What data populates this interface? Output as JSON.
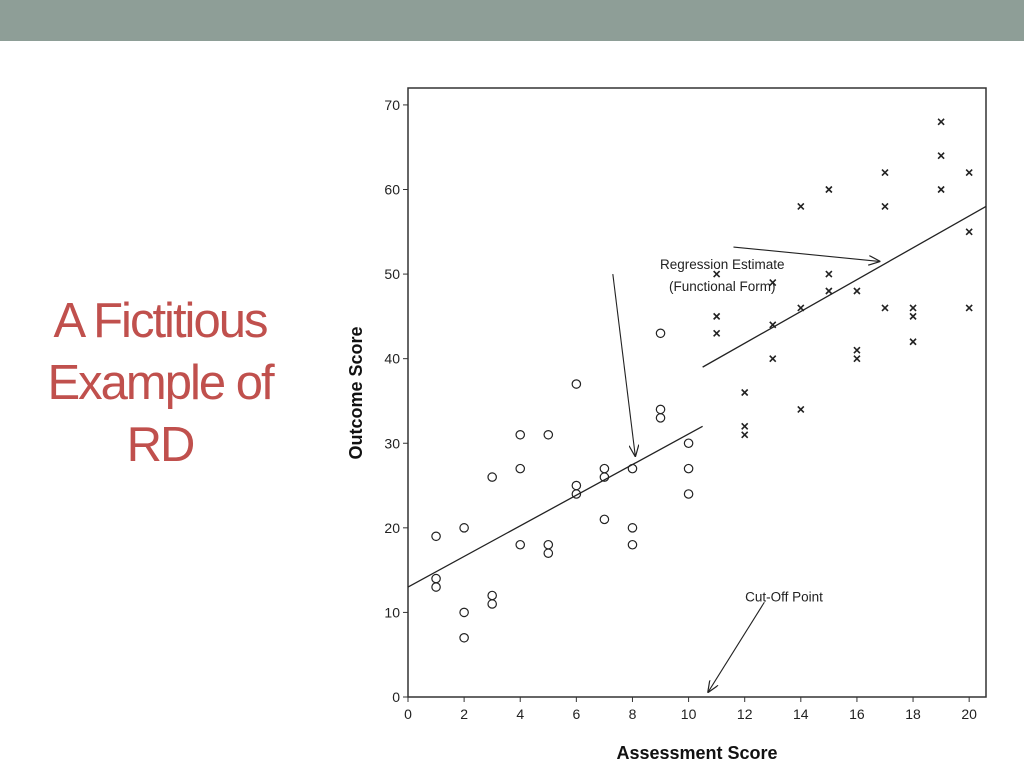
{
  "slide": {
    "title_lines": [
      "A Fictitious",
      "Example of",
      "RD"
    ],
    "title_color": "#c0504d",
    "header_bar_color": "#8e9e97"
  },
  "chart_data": {
    "type": "scatter",
    "xlabel": "Assessment Score",
    "ylabel": "Outcome Score",
    "xlim": [
      0,
      20.6
    ],
    "ylim": [
      0,
      72
    ],
    "xticks": [
      0,
      2,
      4,
      6,
      8,
      10,
      12,
      14,
      16,
      18,
      20
    ],
    "yticks": [
      0,
      10,
      20,
      30,
      40,
      50,
      60,
      70
    ],
    "grid": false,
    "cutoff": 10.5,
    "series": [
      {
        "marker": "circle",
        "points": [
          [
            1,
            19
          ],
          [
            1,
            14
          ],
          [
            1,
            13
          ],
          [
            2,
            20
          ],
          [
            2,
            10
          ],
          [
            2,
            7
          ],
          [
            3,
            26
          ],
          [
            3,
            12
          ],
          [
            3,
            11
          ],
          [
            4,
            31
          ],
          [
            4,
            27
          ],
          [
            4,
            18
          ],
          [
            5,
            31
          ],
          [
            5,
            18
          ],
          [
            5,
            17
          ],
          [
            6,
            37
          ],
          [
            6,
            25
          ],
          [
            6,
            24
          ],
          [
            7,
            27
          ],
          [
            7,
            26
          ],
          [
            7,
            21
          ],
          [
            8,
            27
          ],
          [
            8,
            20
          ],
          [
            8,
            18
          ],
          [
            9,
            43
          ],
          [
            9,
            34
          ],
          [
            9,
            33
          ],
          [
            10,
            30
          ],
          [
            10,
            27
          ],
          [
            10,
            24
          ]
        ]
      },
      {
        "marker": "cross",
        "points": [
          [
            11,
            50
          ],
          [
            11,
            45
          ],
          [
            11,
            43
          ],
          [
            12,
            36
          ],
          [
            12,
            32
          ],
          [
            12,
            31
          ],
          [
            13,
            49
          ],
          [
            13,
            44
          ],
          [
            13,
            40
          ],
          [
            14,
            58
          ],
          [
            14,
            46
          ],
          [
            14,
            34
          ],
          [
            15,
            60
          ],
          [
            15,
            50
          ],
          [
            15,
            48
          ],
          [
            16,
            48
          ],
          [
            16,
            41
          ],
          [
            16,
            40
          ],
          [
            17,
            62
          ],
          [
            17,
            58
          ],
          [
            17,
            46
          ],
          [
            18,
            46
          ],
          [
            18,
            45
          ],
          [
            18,
            42
          ],
          [
            19,
            68
          ],
          [
            19,
            64
          ],
          [
            19,
            60
          ],
          [
            20,
            62
          ],
          [
            20,
            55
          ],
          [
            20,
            46
          ]
        ]
      }
    ],
    "regression_lines": [
      {
        "from": [
          0,
          13
        ],
        "to": [
          10.5,
          32
        ]
      },
      {
        "from": [
          10.5,
          39
        ],
        "to": [
          20.6,
          58
        ]
      }
    ],
    "annotations": [
      {
        "lines": [
          "Regression Estimate",
          "(Functional Form)"
        ],
        "text_at": [
          11.2,
          50.6
        ],
        "arrows": [
          {
            "from": [
              11.6,
              53.2
            ],
            "to": [
              16.8,
              51.5
            ]
          },
          {
            "from": [
              7.3,
              50
            ],
            "to": [
              8.1,
              28.5
            ]
          }
        ]
      },
      {
        "lines": [
          "Cut-Off Point"
        ],
        "text_at": [
          13.4,
          11.3
        ],
        "arrows": [
          {
            "from": [
              12.7,
              11.2
            ],
            "to": [
              10.7,
              0.6
            ]
          }
        ]
      }
    ]
  }
}
